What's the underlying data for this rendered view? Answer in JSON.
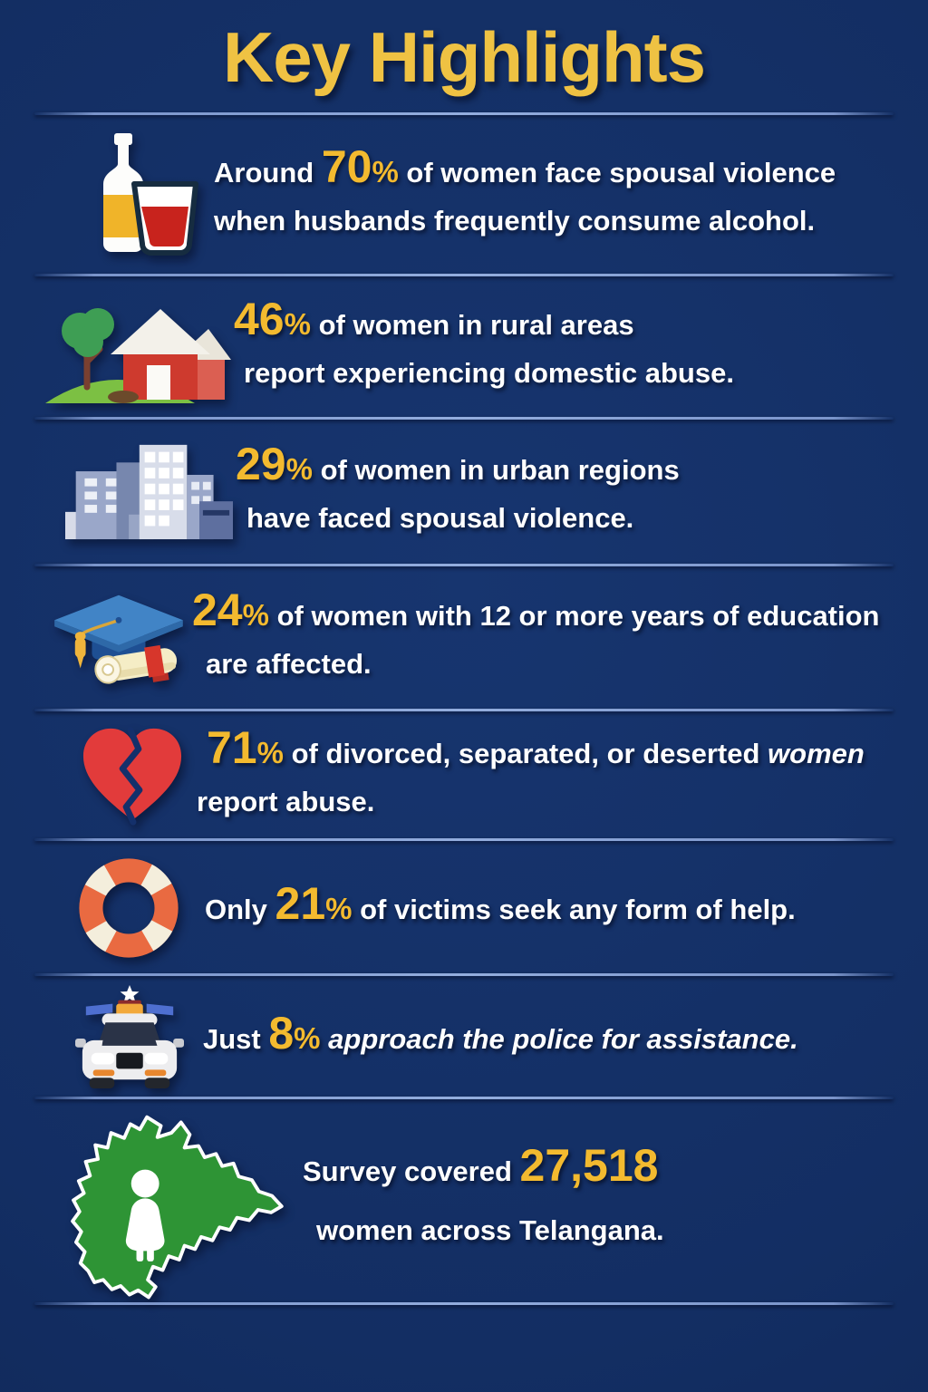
{
  "title": "Key Highlights",
  "colors": {
    "background": "#13306B",
    "title_yellow": "#EFC243",
    "number_yellow": "#F3BA2F",
    "body_text": "#FFFFFF",
    "divider_blue": "#8CA6DC",
    "heart_red": "#E23B3B",
    "map_green": "#2E9435",
    "lifebuoy_orange": "#E96A41",
    "house_red": "#CE3A2E",
    "cap_blue": "#4184C6"
  },
  "rows": [
    {
      "icon": "alcohol-bottle-and-glass-icon",
      "lines": [
        [
          {
            "t": "Around ",
            "s": "w"
          },
          {
            "t": "70",
            "s": "y"
          },
          {
            "t": "%",
            "s": "p"
          },
          {
            "t": " of women face spousal violence",
            "s": "w"
          }
        ],
        [
          {
            "t": "when husbands frequently consume alcohol.",
            "s": "w"
          }
        ]
      ]
    },
    {
      "icon": "rural-house-and-tree-icon",
      "lines": [
        [
          {
            "t": "46",
            "s": "y"
          },
          {
            "t": "%",
            "s": "p"
          },
          {
            "t": " of women in rural areas",
            "s": "w"
          }
        ],
        [
          {
            "t": "report experiencing domestic abuse.",
            "s": "w"
          }
        ]
      ]
    },
    {
      "icon": "urban-buildings-icon",
      "lines": [
        [
          {
            "t": "29",
            "s": "y"
          },
          {
            "t": "%",
            "s": "p"
          },
          {
            "t": " of women in urban regions",
            "s": "w"
          }
        ],
        [
          {
            "t": "have faced spousal violence.",
            "s": "w"
          }
        ]
      ]
    },
    {
      "icon": "graduation-cap-and-diploma-icon",
      "lines": [
        [
          {
            "t": "24",
            "s": "y"
          },
          {
            "t": "%",
            "s": "p"
          },
          {
            "t": " of women with 12 or more years of education",
            "s": "w"
          }
        ],
        [
          {
            "t": "are affected.",
            "s": "w"
          }
        ]
      ]
    },
    {
      "icon": "broken-heart-icon",
      "lines": [
        [
          {
            "t": "71",
            "s": "y"
          },
          {
            "t": "%",
            "s": "p"
          },
          {
            "t": " of divorced, separated, or deserted ",
            "s": "w"
          },
          {
            "t": "women",
            "s": "wi"
          }
        ],
        [
          {
            "t": "report abuse.",
            "s": "w"
          }
        ]
      ]
    },
    {
      "icon": "lifebuoy-icon",
      "lines": [
        [
          {
            "t": "Only ",
            "s": "w"
          },
          {
            "t": "21",
            "s": "y"
          },
          {
            "t": "%",
            "s": "p"
          },
          {
            "t": " of victims seek any form of help.",
            "s": "w"
          }
        ]
      ]
    },
    {
      "icon": "police-car-icon",
      "lines": [
        [
          {
            "t": "Just ",
            "s": "w"
          },
          {
            "t": "8",
            "s": "y"
          },
          {
            "t": "%",
            "s": "p"
          },
          {
            "t": " ",
            "s": "w"
          },
          {
            "t": "approach the police for assistance.",
            "s": "wi"
          }
        ]
      ]
    },
    {
      "icon": "telangana-map-with-person-icon",
      "lines": [
        [
          {
            "t": "Survey covered ",
            "s": "w"
          },
          {
            "t": "27,518",
            "s": "y"
          }
        ],
        [
          {
            "t": "women across Telangana.",
            "s": "w"
          }
        ]
      ]
    }
  ]
}
